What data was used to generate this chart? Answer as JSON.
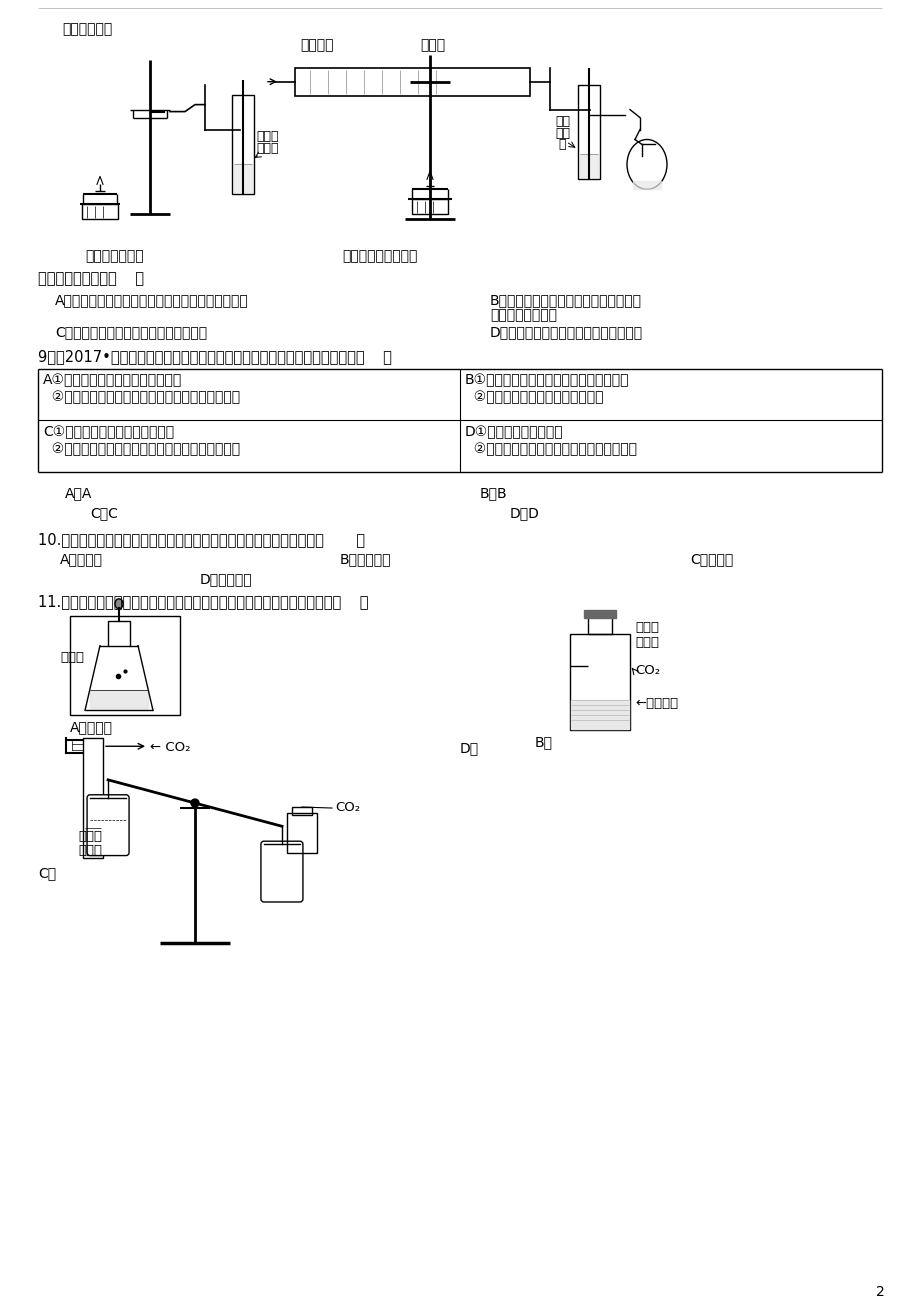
{
  "bg_color": "#ffffff",
  "page_number": "2",
  "content": {
    "question_8_label": "下列说法正确的是（    ）",
    "q8_A": "A．木炭、一氧化碳与氧化铜的反应都属于置换反应",
    "q8_B": "B．两个实验的相关反应中，只有碳元素",
    "q8_B2": "的化合价发生改变",
    "q8_C": "C．两个实验中都可观察到黑色固体变红",
    "q8_D": "D．两个实验的操作中都要防止液体倒吸",
    "question_9_label": "9．（2017•齐齐哈尔）下列有关生产生活中的化学知识整理有错误的一组是（    ）",
    "table_A1_1": "①煤炉上放一壶水能防止煤气中毒",
    "table_A1_2": "②喝汽水后打嗝，是因为温度越高气体溶解度越小",
    "table_B1_1": "①使用铵态氮肥注意不能和碱性物质混合",
    "table_B1_2": "②缺锌会引起食欲不振，发育不良",
    "table_C1_1": "①金刚石和石墨中都含有碳元素",
    "table_C1_2": "②洗净的碎鸡蛋壳加入食醋，会产生二氧化碳气体",
    "table_D1_1": "①洗涤剂具有乳化作用",
    "table_D1_2": "②自来水厂用活性炭吸附水中的色素和异味",
    "q9_ans_A": "A．A",
    "q9_ans_B": "B．B",
    "q9_ans_C": "C．C",
    "q9_ans_D": "D．D",
    "question_10_label": "10.在《二氧化碳的制取》实验中，发生装置需要的玻璃仪器中不包括（       ）",
    "q10_A": "A．锥形瓶",
    "q10_B": "B．长颈漏斗",
    "q10_C": "C．长导管",
    "q10_D": "D．胶头滴管",
    "question_11_label": "11.下列有关验证二氧化碳性质的实验中，不能证明二氧化碳化学性质的是（    ）",
    "diag_top_left_label1": "木炭和氧化铜",
    "diag_top_left_label2": "澄清的",
    "diag_top_left_label3": "石灰水",
    "diag_top_left_bottom": "木炭还原氧化铜",
    "diag_top_right_label1": "一氧化碳",
    "diag_top_right_label2": "氧化铜",
    "diag_top_right_label3": "澄清",
    "diag_top_right_label4": "石灰",
    "diag_top_right_label5": "水",
    "diag_top_right_bottom": "一氧化碳还原氧化铜",
    "q11_A_label": "石灰石",
    "q11_A_acid": "稀盐酸",
    "q11_B_label2": "矿泉水",
    "q11_B_label3": "塑料瓶",
    "q11_B_label4": "CO₂",
    "q11_B_label5": "清石灰水",
    "q11_C_co2": "CO₂",
    "q11_C_label3": "紫色石",
    "q11_C_label4": "蕊试液",
    "q11_D_label": "CO₂"
  }
}
